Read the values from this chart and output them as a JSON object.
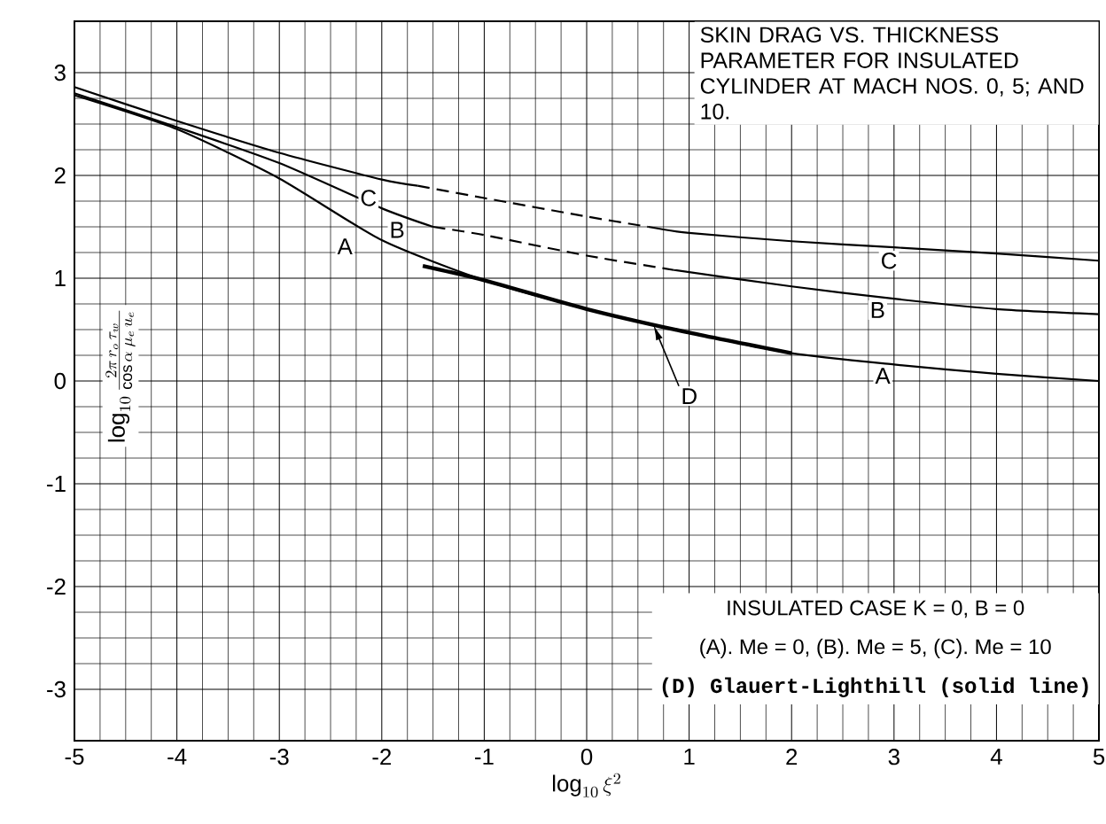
{
  "chart_data": {
    "type": "line",
    "title": "SKIN DRAG VS. THICKNESS PARAMETER FOR INSULATED CYLINDER AT MACH NOS. 0, 5; AND 10.",
    "xlabel": "\\log_{10} \\xi^{2}",
    "ylabel": "\\log_{10} \\frac{2\\pi\\, r_{o}\\, \\tau_{w}}{\\cos\\alpha\\; \\mu_{e}\\, u_{e}}",
    "xlim": [
      -5,
      5
    ],
    "ylim": [
      -3.5,
      3.5
    ],
    "xticks": [
      -5,
      -4,
      -3,
      -2,
      -1,
      0,
      1,
      2,
      3,
      4,
      5
    ],
    "yticks": [
      -3,
      -2,
      -1,
      0,
      1,
      2,
      3
    ],
    "grid": true,
    "marker": "none",
    "series": [
      {
        "color": "#000000",
        "line_style": "solid",
        "x": [
          -5,
          -4,
          -3,
          -2,
          -1,
          0,
          1,
          2,
          3,
          4,
          5
        ],
        "values": [
          2.78,
          2.45,
          1.97,
          1.37,
          0.98,
          0.7,
          0.47,
          0.27,
          0.16,
          0.07,
          0.0
        ]
      },
      {
        "color": "#000000",
        "line_style": "solid",
        "x": [
          -5,
          -4,
          -3,
          -2,
          -1.5
        ],
        "values": [
          2.8,
          2.47,
          2.12,
          1.68,
          1.5
        ]
      },
      {
        "color": "#000000",
        "line_style": "dashed",
        "x": [
          -1.5,
          -1,
          0,
          0.85
        ],
        "values": [
          1.5,
          1.42,
          1.22,
          1.08
        ]
      },
      {
        "color": "#000000",
        "line_style": "solid",
        "x": [
          0.85,
          2,
          3,
          4,
          5
        ],
        "values": [
          1.08,
          0.92,
          0.8,
          0.7,
          0.65
        ]
      },
      {
        "color": "#000000",
        "line_style": "solid",
        "x": [
          -5,
          -4,
          -3,
          -2,
          -1.65
        ],
        "values": [
          2.86,
          2.53,
          2.22,
          1.96,
          1.9
        ]
      },
      {
        "color": "#000000",
        "line_style": "dashed",
        "x": [
          -1.65,
          -1,
          0,
          0.6
        ],
        "values": [
          1.9,
          1.78,
          1.6,
          1.5
        ]
      },
      {
        "color": "#000000",
        "line_style": "solid",
        "x": [
          0.6,
          1,
          2,
          3,
          4,
          5
        ],
        "values": [
          1.5,
          1.44,
          1.36,
          1.3,
          1.24,
          1.17
        ]
      },
      {
        "color": "#000000",
        "line_style": "solid",
        "x": [
          -1.6,
          -1,
          0,
          1,
          2
        ],
        "values": [
          1.12,
          0.98,
          0.7,
          0.47,
          0.27
        ]
      }
    ],
    "annotations": [
      "INSULATED CASE      K = 0,    B = 0",
      "(A).  Me = 0,     (B).  Me = 5,     (C).  Me = 10",
      "(D)  Glauert-Lighthill (solid line)",
      {
        "text": "A",
        "x": -2.36,
        "y": 1.31
      },
      {
        "text": "B",
        "x": -1.85,
        "y": 1.47
      },
      {
        "text": "C",
        "x": -2.13,
        "y": 1.78
      },
      {
        "text": "C",
        "x": 2.95,
        "y": 1.17
      },
      {
        "text": "B",
        "x": 2.84,
        "y": 0.69
      },
      {
        "text": "A",
        "x": 2.89,
        "y": 0.05
      },
      {
        "text": "D",
        "x": 0.65,
        "y": 0.55
      }
    ]
  }
}
